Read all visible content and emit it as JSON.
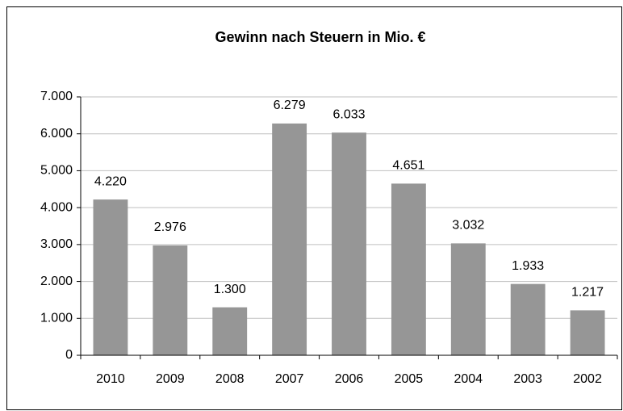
{
  "chart_data": {
    "type": "bar",
    "title": "Gewinn nach Steuern in Mio. €",
    "categories": [
      "2010",
      "2009",
      "2008",
      "2007",
      "2006",
      "2005",
      "2004",
      "2003",
      "2002"
    ],
    "values": [
      4220,
      2976,
      1300,
      6279,
      6033,
      4651,
      3032,
      1933,
      1217
    ],
    "value_labels": [
      "4.220",
      "2.976",
      "1.300",
      "6.279",
      "6.033",
      "4.651",
      "3.032",
      "1.933",
      "1.217"
    ],
    "color": "#969696",
    "ylim": [
      0,
      7000
    ],
    "yticks": [
      0,
      {
        "value": 1000,
        "label": "1.000"
      },
      {
        "value": 2000,
        "label": "2.000"
      },
      {
        "value": 3000,
        "label": "3.000"
      },
      {
        "value": 4000,
        "label": "4.000"
      },
      {
        "value": 5000,
        "label": "5.000"
      },
      {
        "value": 6000,
        "label": "6.000"
      },
      {
        "value": 7000,
        "label": "7.000"
      }
    ],
    "grid": true
  }
}
